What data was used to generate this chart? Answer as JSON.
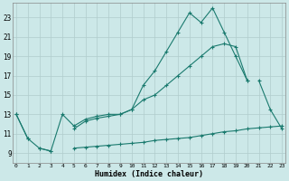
{
  "xlabel": "Humidex (Indice chaleur)",
  "background_color": "#cce8e8",
  "grid_color": "#b0cccc",
  "line_color": "#1a7a6e",
  "xlim": [
    -0.3,
    23.3
  ],
  "ylim": [
    8.0,
    24.5
  ],
  "yticks": [
    9,
    11,
    13,
    15,
    17,
    19,
    21,
    23
  ],
  "xticks": [
    0,
    1,
    2,
    3,
    4,
    5,
    6,
    7,
    8,
    9,
    10,
    11,
    12,
    13,
    14,
    15,
    16,
    17,
    18,
    19,
    20,
    21,
    22,
    23
  ],
  "y_main": [
    13,
    10.5,
    9.5,
    9.2,
    13.0,
    11.8,
    12.5,
    12.8,
    13.0,
    13.0,
    13.5,
    16.0,
    17.5,
    19.5,
    21.5,
    23.5,
    22.5,
    24.0,
    21.5,
    19.0,
    16.5,
    null,
    null,
    null
  ],
  "y_upper": [
    13,
    10.5,
    null,
    null,
    null,
    11.5,
    12.5,
    12.8,
    13.0,
    13.0,
    14.0,
    15.5,
    16.0,
    17.5,
    18.0,
    19.0,
    20.0,
    20.5,
    20.0,
    19.5,
    16.5,
    null,
    null,
    null
  ],
  "y_lower": [
    null,
    null,
    9.5,
    9.2,
    null,
    9.5,
    9.6,
    9.7,
    9.8,
    9.9,
    10.0,
    10.1,
    10.3,
    10.4,
    10.5,
    10.6,
    10.8,
    11.0,
    11.2,
    11.3,
    11.5,
    11.6,
    11.7,
    11.8
  ],
  "y_extra": [
    null,
    null,
    null,
    null,
    null,
    null,
    null,
    null,
    null,
    null,
    null,
    null,
    null,
    null,
    null,
    null,
    null,
    null,
    null,
    null,
    null,
    16.5,
    13.5,
    11.5
  ]
}
